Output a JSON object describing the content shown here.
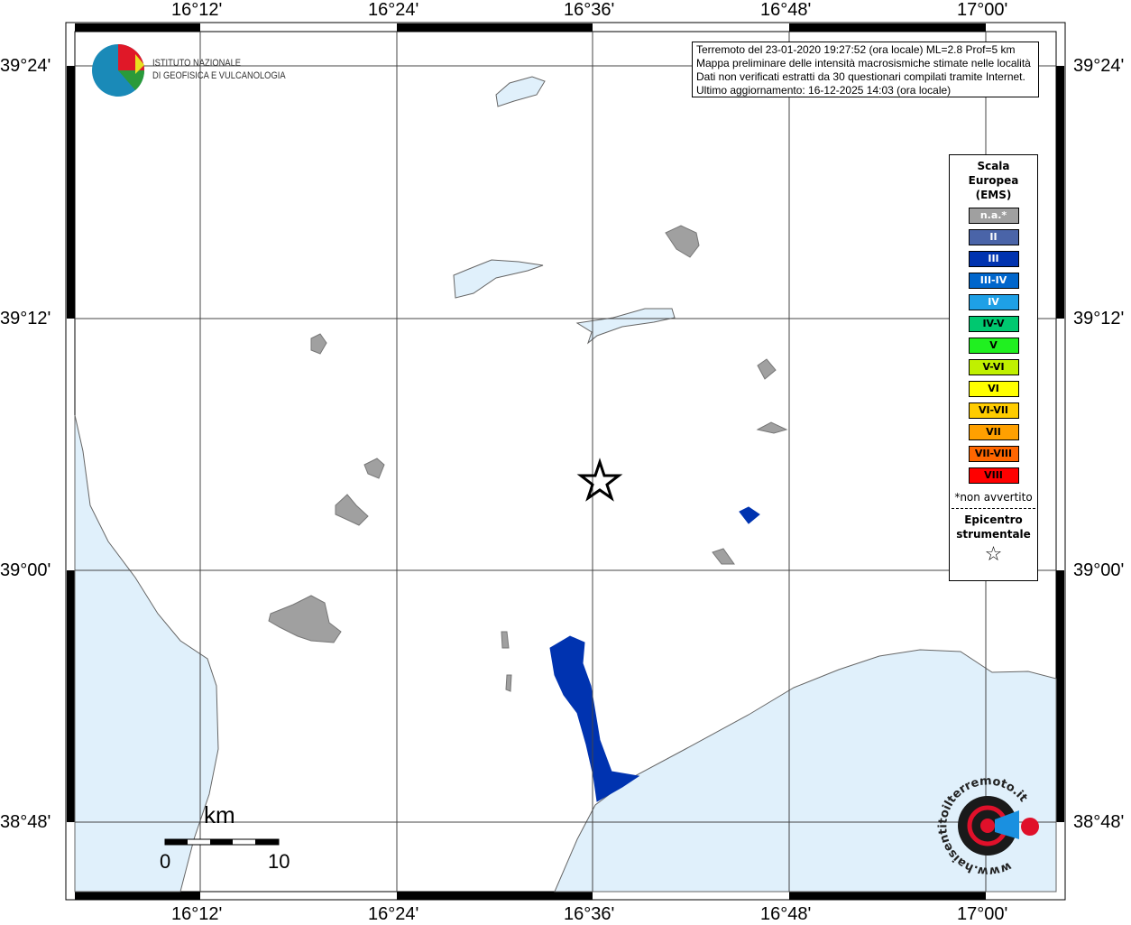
{
  "map": {
    "lon_ticks": [
      "16°12'",
      "16°24'",
      "16°36'",
      "16°48'",
      "17°00'"
    ],
    "lat_ticks": [
      "39°24'",
      "39°12'",
      "39°00'",
      "38°48'"
    ],
    "epicenter_icon": "star-outline"
  },
  "info": {
    "lines": [
      "Terremoto del 23-01-2020 19:27:52 (ora locale) ML=2.8 Prof=5 km",
      "Mappa preliminare delle intensità macrosismiche stimate nelle località",
      "Dati non verificati estratti da 30 questionari compilati tramite Internet.",
      "Ultimo aggiornamento: 16-12-2025 14:03 (ora locale)"
    ]
  },
  "legend": {
    "title": [
      "Scala",
      "Europea",
      "(EMS)"
    ],
    "items": [
      {
        "label": "n.a.*",
        "color": "#a0a0a0",
        "text": "#fff"
      },
      {
        "label": "II",
        "color": "#4a64a8",
        "text": "#fff"
      },
      {
        "label": "III",
        "color": "#0033b0",
        "text": "#fff"
      },
      {
        "label": "III-IV",
        "color": "#0066cc",
        "text": "#fff"
      },
      {
        "label": "IV",
        "color": "#1ea0e6",
        "text": "#fff"
      },
      {
        "label": "IV-V",
        "color": "#00c870",
        "text": "#000"
      },
      {
        "label": "V",
        "color": "#20f020",
        "text": "#000"
      },
      {
        "label": "V-VI",
        "color": "#c0f000",
        "text": "#000"
      },
      {
        "label": "VI",
        "color": "#ffff00",
        "text": "#000"
      },
      {
        "label": "VI-VII",
        "color": "#ffcc00",
        "text": "#000"
      },
      {
        "label": "VII",
        "color": "#ffa000",
        "text": "#000"
      },
      {
        "label": "VII-VIII",
        "color": "#ff6600",
        "text": "#000"
      },
      {
        "label": "VIII",
        "color": "#ff0000",
        "text": "#000"
      }
    ],
    "note": "*non avvertito",
    "epicenter_label": [
      "Epicentro",
      "strumentale"
    ],
    "epicenter_symbol": "☆"
  },
  "scalebar": {
    "unit": "km",
    "min": "0",
    "max": "10"
  },
  "logos": {
    "ingv": [
      "ISTITUTO NAZIONALE",
      "DI GEOFISICA E VULCANOLOGIA"
    ],
    "hsit": "www.haisentitoilterremoto.it"
  },
  "colors": {
    "sea": "#e0f0fb",
    "town": "#a0a0a0",
    "lake": "#e0f0fb",
    "intensity_III": "#0033b0"
  }
}
